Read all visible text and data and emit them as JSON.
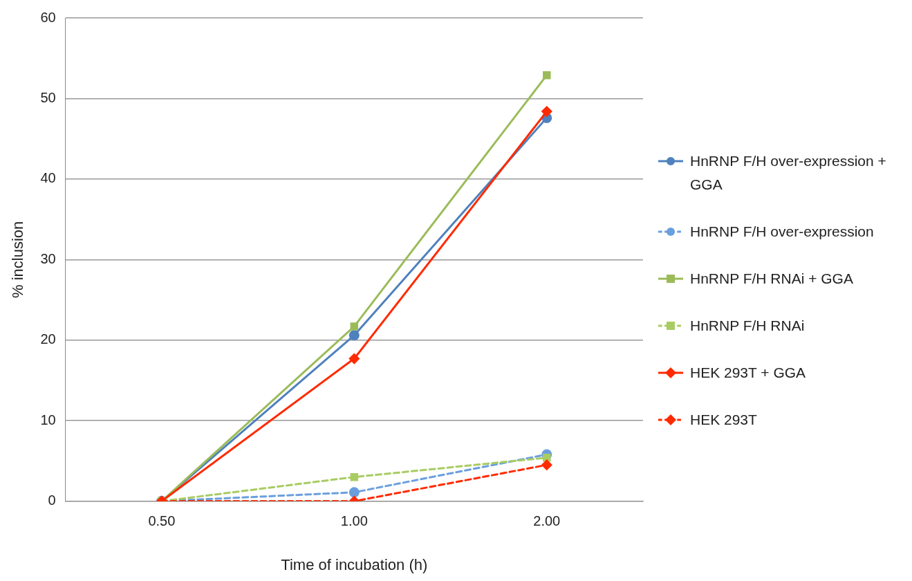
{
  "chart_data": {
    "type": "line",
    "xlabel": "Time of incubation (h)",
    "ylabel": "% inclusion",
    "categories": [
      "0.50",
      "1.00",
      "2.00"
    ],
    "ylim": [
      0,
      60
    ],
    "yticks": [
      0,
      10,
      20,
      30,
      40,
      50,
      60
    ],
    "grid": "y",
    "legend": "right",
    "series": [
      {
        "name": "HnRNP F/H over-expression + GGA",
        "color": "#4f81bd",
        "marker": "circle",
        "line_style": "solid",
        "values": [
          0,
          20.6,
          47.6
        ]
      },
      {
        "name": "HnRNP F/H over-expression",
        "color": "#6a9fde",
        "marker": "circle",
        "line_style": "dashed",
        "values": [
          0,
          1.1,
          5.8
        ]
      },
      {
        "name": "HnRNP F/H RNAi + GGA",
        "color": "#9bbb59",
        "marker": "square",
        "line_style": "solid",
        "values": [
          0,
          21.7,
          52.9
        ]
      },
      {
        "name": "HnRNP F/H RNAi",
        "color": "#a8cc62",
        "marker": "square",
        "line_style": "dashed",
        "values": [
          0,
          3.0,
          5.4
        ]
      },
      {
        "name": "HEK 293T + GGA",
        "color": "#ff2a00",
        "marker": "diamond",
        "line_style": "solid",
        "values": [
          0,
          17.7,
          48.4
        ]
      },
      {
        "name": "HEK 293T",
        "color": "#ff2a00",
        "marker": "diamond",
        "line_style": "dashed",
        "values": [
          0,
          0,
          4.5
        ]
      }
    ]
  }
}
